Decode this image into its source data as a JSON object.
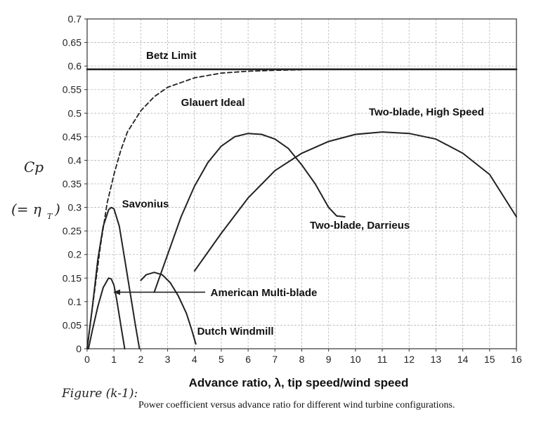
{
  "chart_data": {
    "type": "line",
    "xlabel": "Advance ratio, λ, tip speed/wind speed",
    "ylabel": "Cp",
    "ylabel_note": "(= η",
    "ylabel_note_sub": "T",
    "ylabel_note_close": ")",
    "xlim": [
      0,
      16
    ],
    "ylim": [
      0,
      0.7
    ],
    "xticks": [
      0,
      1,
      2,
      3,
      4,
      5,
      6,
      7,
      8,
      9,
      10,
      11,
      12,
      13,
      14,
      15,
      16
    ],
    "yticks": [
      0,
      0.05,
      0.1,
      0.15,
      0.2,
      0.25,
      0.3,
      0.35,
      0.4,
      0.45,
      0.5,
      0.55,
      0.6,
      0.65,
      0.7
    ],
    "grid": true,
    "series": [
      {
        "name": "Betz Limit",
        "style": "solid-thick",
        "points": [
          [
            0,
            0.593
          ],
          [
            16,
            0.593
          ]
        ]
      },
      {
        "name": "Glauert Ideal",
        "style": "dashed",
        "points": [
          [
            0,
            0
          ],
          [
            0.25,
            0.11
          ],
          [
            0.5,
            0.22
          ],
          [
            0.75,
            0.31
          ],
          [
            1,
            0.37
          ],
          [
            1.25,
            0.42
          ],
          [
            1.5,
            0.46
          ],
          [
            2,
            0.505
          ],
          [
            2.5,
            0.535
          ],
          [
            3,
            0.555
          ],
          [
            4,
            0.575
          ],
          [
            5,
            0.585
          ],
          [
            6,
            0.589
          ],
          [
            7,
            0.591
          ],
          [
            8,
            0.592
          ]
        ]
      },
      {
        "name": "Savonius",
        "style": "solid",
        "points": [
          [
            0,
            0
          ],
          [
            0.2,
            0.09
          ],
          [
            0.4,
            0.19
          ],
          [
            0.6,
            0.26
          ],
          [
            0.8,
            0.295
          ],
          [
            0.9,
            0.3
          ],
          [
            1.0,
            0.297
          ],
          [
            1.2,
            0.26
          ],
          [
            1.4,
            0.19
          ],
          [
            1.6,
            0.12
          ],
          [
            1.8,
            0.05
          ],
          [
            1.95,
            0.0
          ]
        ]
      },
      {
        "name": "American Multi-blade",
        "style": "solid",
        "points": [
          [
            0.05,
            0.0
          ],
          [
            0.2,
            0.04
          ],
          [
            0.4,
            0.09
          ],
          [
            0.6,
            0.13
          ],
          [
            0.8,
            0.15
          ],
          [
            0.9,
            0.148
          ],
          [
            1.0,
            0.135
          ],
          [
            1.1,
            0.105
          ],
          [
            1.2,
            0.07
          ],
          [
            1.3,
            0.035
          ],
          [
            1.4,
            0.0
          ]
        ]
      },
      {
        "name": "Dutch Windmill",
        "style": "solid",
        "points": [
          [
            2.0,
            0.145
          ],
          [
            2.2,
            0.157
          ],
          [
            2.5,
            0.162
          ],
          [
            2.8,
            0.157
          ],
          [
            3.1,
            0.14
          ],
          [
            3.4,
            0.112
          ],
          [
            3.7,
            0.075
          ],
          [
            3.9,
            0.04
          ],
          [
            4.05,
            0.01
          ]
        ]
      },
      {
        "name": "Two-blade, Darrieus",
        "style": "solid",
        "points": [
          [
            2.5,
            0.12
          ],
          [
            3,
            0.2
          ],
          [
            3.5,
            0.28
          ],
          [
            4,
            0.345
          ],
          [
            4.5,
            0.395
          ],
          [
            5,
            0.43
          ],
          [
            5.5,
            0.45
          ],
          [
            6,
            0.457
          ],
          [
            6.5,
            0.455
          ],
          [
            7,
            0.445
          ],
          [
            7.5,
            0.425
          ],
          [
            8,
            0.39
          ],
          [
            8.5,
            0.35
          ],
          [
            9,
            0.3
          ],
          [
            9.3,
            0.282
          ],
          [
            9.6,
            0.28
          ]
        ]
      },
      {
        "name": "Two-blade, High Speed",
        "style": "solid",
        "points": [
          [
            4,
            0.165
          ],
          [
            5,
            0.245
          ],
          [
            6,
            0.32
          ],
          [
            7,
            0.378
          ],
          [
            8,
            0.415
          ],
          [
            9,
            0.44
          ],
          [
            10,
            0.455
          ],
          [
            11,
            0.46
          ],
          [
            12,
            0.457
          ],
          [
            13,
            0.445
          ],
          [
            14,
            0.415
          ],
          [
            15,
            0.37
          ],
          [
            16,
            0.28
          ]
        ]
      }
    ],
    "annotations": [
      {
        "text": "Betz Limit",
        "x": 2.2,
        "y": 0.615
      },
      {
        "text": "Glauert Ideal",
        "x": 3.5,
        "y": 0.515
      },
      {
        "text": "Two-blade, High Speed",
        "x": 10.5,
        "y": 0.495
      },
      {
        "text": "Savonius",
        "x": 1.3,
        "y": 0.3
      },
      {
        "text": "Two-blade, Darrieus",
        "x": 8.3,
        "y": 0.255
      },
      {
        "text": "American Multi-blade",
        "x": 4.6,
        "y": 0.112
      },
      {
        "text": "Dutch Windmill",
        "x": 4.1,
        "y": 0.03
      }
    ],
    "arrow": {
      "from": [
        4.4,
        0.12
      ],
      "to": [
        1.0,
        0.12
      ]
    }
  },
  "figure": {
    "label": "Figure (k-1):",
    "caption": "Power coefficient versus advance ratio for different wind turbine configurations."
  }
}
